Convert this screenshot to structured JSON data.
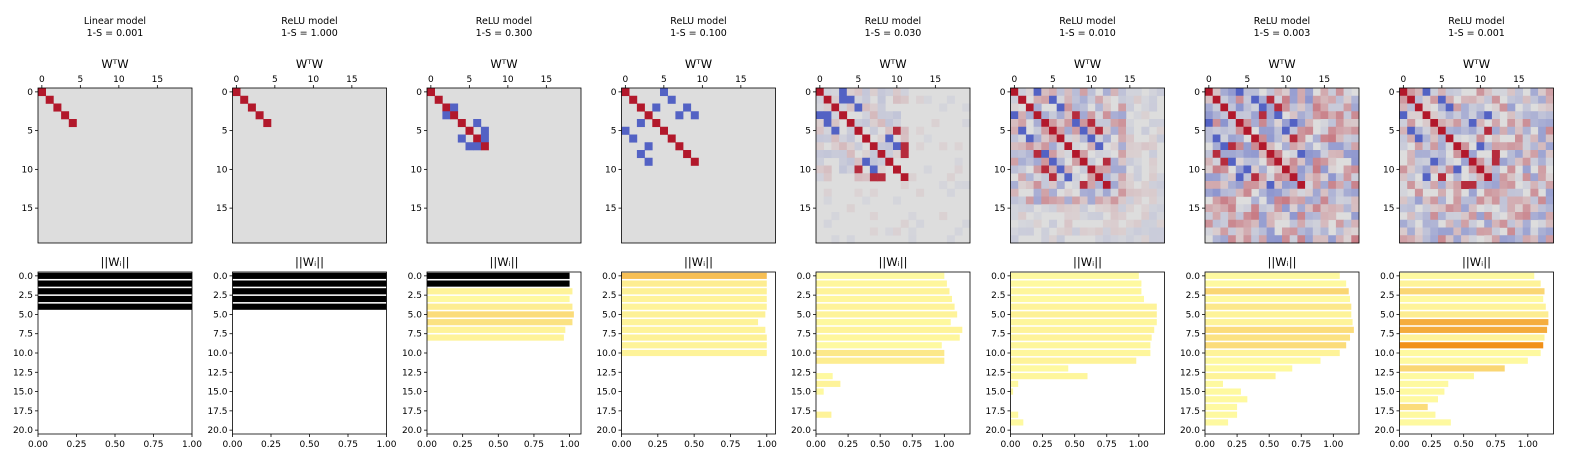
{
  "figure": {
    "panels": [
      {
        "title": "Linear model",
        "sparsity": "1-S = 0.001"
      },
      {
        "title": "ReLU model",
        "sparsity": "1-S = 1.000"
      },
      {
        "title": "ReLU model",
        "sparsity": "1-S = 0.300"
      },
      {
        "title": "ReLU model",
        "sparsity": "1-S = 0.100"
      },
      {
        "title": "ReLU model",
        "sparsity": "1-S = 0.030"
      },
      {
        "title": "ReLU model",
        "sparsity": "1-S = 0.010"
      },
      {
        "title": "ReLU model",
        "sparsity": "1-S = 0.003"
      },
      {
        "title": "ReLU model",
        "sparsity": "1-S = 0.001"
      }
    ],
    "heatmap_title": "WᵀW",
    "bar_title": "||Wᵢ||",
    "colors": {
      "heat_positive": "#b2182b",
      "heat_negative": "#3b4cc0",
      "heat_zero": "#dddddd",
      "bar_black": "#000000",
      "bar_low": "#ffffa8",
      "bar_high": "#f08a10"
    }
  },
  "chart_data": [
    {
      "type": "heatmap",
      "title": "WᵀW",
      "size": 20,
      "x_ticks": [
        "0",
        "5",
        "10",
        "15"
      ],
      "y_ticks": [
        "0",
        "5",
        "10",
        "15"
      ],
      "panels": [
        {
          "diag": [
            0,
            1,
            2,
            3,
            4
          ],
          "neg": [],
          "posOff": [],
          "noise": 0
        },
        {
          "diag": [
            0,
            1,
            2,
            3,
            4
          ],
          "neg": [],
          "posOff": [],
          "noise": 0
        },
        {
          "diag": [
            0,
            1,
            2,
            3,
            4,
            5,
            6,
            7
          ],
          "neg": [
            [
              2,
              3
            ],
            [
              5,
              7
            ],
            [
              6,
              7
            ],
            [
              4,
              6
            ]
          ],
          "posOff": [],
          "noise": 0
        },
        {
          "diag": [
            0,
            1,
            2,
            3,
            4,
            5,
            6,
            7,
            8,
            9
          ],
          "neg": [
            [
              1,
              6
            ],
            [
              3,
              7
            ],
            [
              0,
              5
            ],
            [
              2,
              4
            ],
            [
              2,
              8
            ],
            [
              3,
              9
            ]
          ],
          "posOff": [],
          "noise": 0
        },
        {
          "diag": [
            0,
            1,
            2,
            3,
            4,
            5,
            6,
            7,
            8,
            9,
            10,
            11
          ],
          "neg": [
            [
              0,
              3
            ],
            [
              1,
              4
            ],
            [
              2,
              5
            ],
            [
              6,
              9
            ],
            [
              7,
              10
            ],
            [
              1,
              3
            ]
          ],
          "posOff": [
            [
              8,
              11
            ],
            [
              5,
              10
            ],
            [
              7,
              11
            ]
          ],
          "noise": 0.18,
          "seed": 11,
          "active": 12
        },
        {
          "diag": [
            0,
            1,
            2,
            3,
            4,
            5,
            6,
            7,
            8,
            9,
            10,
            11,
            12
          ],
          "neg": [
            [
              0,
              3
            ],
            [
              1,
              5
            ],
            [
              2,
              6
            ],
            [
              4,
              8
            ],
            [
              5,
              9
            ],
            [
              7,
              11
            ],
            [
              6,
              10
            ]
          ],
          "posOff": [
            [
              3,
              8
            ],
            [
              4,
              10
            ],
            [
              9,
              12
            ],
            [
              5,
              11
            ]
          ],
          "noise": 0.38,
          "seed": 23,
          "active": 15
        },
        {
          "diag": [
            0,
            1,
            2,
            3,
            4,
            5,
            6,
            7,
            8,
            9,
            10,
            11,
            12
          ],
          "neg": [
            [
              0,
              4
            ],
            [
              1,
              6
            ],
            [
              2,
              7
            ],
            [
              3,
              9
            ],
            [
              5,
              10
            ],
            [
              8,
              12
            ],
            [
              4,
              11
            ]
          ],
          "posOff": [
            [
              2,
              9
            ],
            [
              6,
              11
            ],
            [
              3,
              7
            ],
            [
              1,
              8
            ]
          ],
          "noise": 0.5,
          "seed": 37,
          "active": 20
        },
        {
          "diag": [
            0,
            1,
            2,
            3,
            4,
            5,
            6,
            7,
            8,
            9,
            10,
            11
          ],
          "neg": [
            [
              0,
              3
            ],
            [
              1,
              5
            ],
            [
              2,
              6
            ],
            [
              4,
              9
            ],
            [
              7,
              10
            ],
            [
              3,
              11
            ]
          ],
          "posOff": [
            [
              8,
              12
            ],
            [
              5,
              11
            ],
            [
              9,
              12
            ]
          ],
          "noise": 0.42,
          "seed": 51,
          "active": 20
        }
      ]
    },
    {
      "type": "bar",
      "orientation": "horizontal",
      "title": "||Wᵢ||",
      "y_ticks": [
        "0.0",
        "2.5",
        "5.0",
        "7.5",
        "10.0",
        "12.5",
        "15.0",
        "17.5",
        "20.0"
      ],
      "panels": [
        {
          "xmax": 1.0,
          "x_ticks": [
            "0.00",
            "0.25",
            "0.50",
            "0.75",
            "1.00"
          ],
          "values": [
            1,
            1,
            1,
            1,
            1
          ],
          "shade": [
            -1,
            -1,
            -1,
            -1,
            -1
          ]
        },
        {
          "xmax": 1.0,
          "x_ticks": [
            "0.00",
            "0.25",
            "0.50",
            "0.75",
            "1.00"
          ],
          "values": [
            1,
            1,
            1,
            1,
            1
          ],
          "shade": [
            -1,
            -1,
            -1,
            -1,
            -1
          ]
        },
        {
          "xmax": 1.08,
          "x_ticks": [
            "0.00",
            "0.25",
            "0.50",
            "0.75",
            "1.00"
          ],
          "values": [
            1.0,
            1.0,
            1.02,
            1.0,
            1.02,
            1.03,
            1.02,
            0.97,
            0.96
          ],
          "shade": [
            -1,
            -1,
            0.1,
            0.05,
            0.15,
            0.3,
            0.25,
            0.1,
            0.1
          ]
        },
        {
          "xmax": 1.06,
          "x_ticks": [
            "0.00",
            "0.25",
            "0.50",
            "0.75",
            "1.00"
          ],
          "values": [
            1.0,
            1.0,
            1.0,
            1.0,
            1.0,
            0.99,
            0.94,
            0.99,
            1.0,
            1.0,
            1.0
          ],
          "shade": [
            0.55,
            0.15,
            0.12,
            0.1,
            0.1,
            0.12,
            0.1,
            0.1,
            0.12,
            0.1,
            0.1
          ]
        },
        {
          "xmax": 1.2,
          "x_ticks": [
            "0.00",
            "0.25",
            "0.50",
            "0.75",
            "1.00"
          ],
          "values": [
            1.0,
            1.02,
            1.04,
            1.06,
            1.08,
            1.1,
            1.05,
            1.14,
            1.12,
            0.98,
            1.0,
            1.0,
            0.0,
            0.13,
            0.19,
            0.06,
            0.0,
            0.0,
            0.12,
            0.0
          ],
          "shade": [
            0.05,
            0.08,
            0.1,
            0.08,
            0.1,
            0.1,
            0.06,
            0.1,
            0.08,
            0.05,
            0.2,
            0.15,
            0,
            0.05,
            0.1,
            0.05,
            0,
            0,
            0.1,
            0
          ]
        },
        {
          "xmax": 1.2,
          "x_ticks": [
            "0.00",
            "0.25",
            "0.50",
            "0.75",
            "1.00"
          ],
          "values": [
            1.0,
            1.02,
            1.02,
            1.04,
            1.14,
            1.14,
            1.14,
            1.12,
            1.1,
            1.09,
            1.09,
            0.98,
            0.45,
            0.6,
            0.06,
            0.02,
            0.0,
            0.0,
            0.06,
            0.1
          ],
          "shade": [
            0.05,
            0.05,
            0.08,
            0.05,
            0.1,
            0.12,
            0.08,
            0.1,
            0.1,
            0.08,
            0.08,
            0.1,
            0.05,
            0.08,
            0.05,
            0.05,
            0,
            0,
            0.05,
            0.05
          ]
        },
        {
          "xmax": 1.2,
          "x_ticks": [
            "0.00",
            "0.25",
            "0.50",
            "0.75",
            "1.00"
          ],
          "values": [
            1.05,
            1.1,
            1.12,
            1.13,
            1.14,
            1.14,
            1.15,
            1.16,
            1.13,
            1.1,
            1.05,
            0.9,
            0.68,
            0.55,
            0.14,
            0.28,
            0.33,
            0.25,
            0.25,
            0.18
          ],
          "shade": [
            0.05,
            0.05,
            0.35,
            0.05,
            0.2,
            0.1,
            0.1,
            0.3,
            0.25,
            0.3,
            0.1,
            0.05,
            0.05,
            0.1,
            0.05,
            0.05,
            0.05,
            0.05,
            0.05,
            0.05
          ]
        },
        {
          "xmax": 1.2,
          "x_ticks": [
            "0.00",
            "0.25",
            "0.50",
            "0.75",
            "1.00"
          ],
          "values": [
            1.05,
            1.1,
            1.13,
            1.12,
            1.14,
            1.16,
            1.16,
            1.15,
            1.13,
            1.12,
            1.1,
            1.0,
            0.82,
            0.58,
            0.38,
            0.35,
            0.3,
            0.22,
            0.28,
            0.4
          ],
          "shade": [
            0.05,
            0.1,
            0.35,
            0.05,
            0.1,
            0.15,
            0.7,
            0.72,
            0.1,
            0.95,
            0.05,
            0.05,
            0.35,
            0.05,
            0.05,
            0.05,
            0.05,
            0.3,
            0.05,
            0.05
          ]
        }
      ]
    }
  ]
}
